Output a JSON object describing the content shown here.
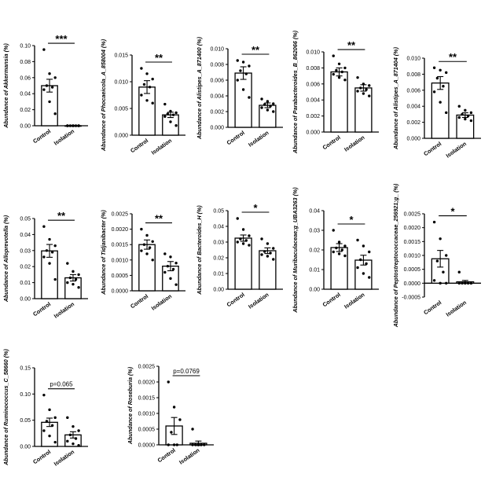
{
  "figure": {
    "background": "#ffffff",
    "bar_fill": "#ffffff",
    "ink": "#000000"
  },
  "chart_data": [
    {
      "type": "bar",
      "ylabel": "Abundance of  Akkermansia (%)",
      "categories": [
        "Control",
        "Isolation"
      ],
      "ylim": [
        0,
        0.1
      ],
      "yticks": [
        "0.00",
        "0.02",
        "0.04",
        "0.06",
        "0.08",
        "0.10"
      ],
      "bars": [
        0.05,
        0.0
      ],
      "errors": [
        0.008,
        0.0005
      ],
      "points": [
        [
          0.095,
          0.065,
          0.06,
          0.05,
          0.048,
          0.045,
          0.03,
          0.015
        ],
        [
          0.0,
          0.0,
          0.0,
          0.0,
          0.0,
          0.0,
          0.0,
          0.0
        ]
      ],
      "sig": "***"
    },
    {
      "type": "bar",
      "ylabel": "Abundance of Phocaeicola_A_858004 (%)",
      "categories": [
        "Control",
        "Isolation"
      ],
      "ylim": [
        0,
        0.015
      ],
      "yticks": [
        "0.000",
        "0.005",
        "0.010",
        "0.015"
      ],
      "bars": [
        0.009,
        0.0038
      ],
      "errors": [
        0.0012,
        0.0005
      ],
      "points": [
        [
          0.0125,
          0.0115,
          0.0105,
          0.0095,
          0.009,
          0.0075,
          0.0065,
          0.006
        ],
        [
          0.0058,
          0.0045,
          0.0042,
          0.004,
          0.0038,
          0.0035,
          0.0025,
          0.0018
        ]
      ],
      "sig": "**"
    },
    {
      "type": "bar",
      "ylabel": "Abundance of Alistipes_A_871400 (%)",
      "categories": [
        "Control",
        "Isolation"
      ],
      "ylim": [
        0,
        0.01
      ],
      "yticks": [
        "0.000",
        "0.002",
        "0.004",
        "0.006",
        "0.008",
        "0.010"
      ],
      "bars": [
        0.0069,
        0.0028
      ],
      "errors": [
        0.0008,
        0.0003
      ],
      "points": [
        [
          0.0085,
          0.0083,
          0.0078,
          0.0072,
          0.0068,
          0.006,
          0.0048,
          0.0038
        ],
        [
          0.0036,
          0.0033,
          0.003,
          0.0029,
          0.0027,
          0.0025,
          0.0022,
          0.002
        ]
      ],
      "sig": "**"
    },
    {
      "type": "bar",
      "ylabel": "Abundance of Parabacteroides_B_862066 (%)",
      "categories": [
        "Control",
        "Isolation"
      ],
      "ylim": [
        0,
        0.01
      ],
      "yticks": [
        "0.000",
        "0.002",
        "0.004",
        "0.006",
        "0.008",
        "0.010"
      ],
      "bars": [
        0.0075,
        0.0055
      ],
      "errors": [
        0.0005,
        0.0004
      ],
      "points": [
        [
          0.0095,
          0.0085,
          0.008,
          0.0077,
          0.0075,
          0.0072,
          0.0068,
          0.0065
        ],
        [
          0.0068,
          0.006,
          0.0058,
          0.0055,
          0.0053,
          0.0051,
          0.0048,
          0.0045
        ]
      ],
      "sig": "**"
    },
    {
      "type": "bar",
      "ylabel": "Abundance of Alistipes_A_871404 (%)",
      "categories": [
        "Control",
        "Isolation"
      ],
      "ylim": [
        0,
        0.01
      ],
      "yticks": [
        "0.000",
        "0.002",
        "0.004",
        "0.006",
        "0.008",
        "0.010"
      ],
      "bars": [
        0.0069,
        0.0029
      ],
      "errors": [
        0.0008,
        0.0003
      ],
      "points": [
        [
          0.0088,
          0.0085,
          0.0082,
          0.0075,
          0.0065,
          0.0058,
          0.0045,
          0.0032
        ],
        [
          0.004,
          0.0035,
          0.0032,
          0.003,
          0.0028,
          0.0026,
          0.0024,
          0.0022
        ]
      ],
      "sig": "**"
    },
    {
      "type": "bar",
      "ylabel": "Abundance of Alloprevotella (%)",
      "categories": [
        "Control",
        "Isolation"
      ],
      "ylim": [
        0,
        0.05
      ],
      "yticks": [
        "0.00",
        "0.01",
        "0.02",
        "0.03",
        "0.04",
        "0.05"
      ],
      "bars": [
        0.0298,
        0.013
      ],
      "errors": [
        0.004,
        0.002
      ],
      "points": [
        [
          0.045,
          0.037,
          0.033,
          0.03,
          0.029,
          0.026,
          0.022,
          0.012
        ],
        [
          0.022,
          0.017,
          0.015,
          0.013,
          0.012,
          0.01,
          0.009,
          0.007
        ]
      ],
      "sig": "**"
    },
    {
      "type": "bar",
      "ylabel": "Abundance of Tidjanibacter (%)",
      "categories": [
        "Control",
        "Isolation"
      ],
      "ylim": [
        0,
        0.0025
      ],
      "yticks": [
        "0.0000",
        "0.0005",
        "0.0010",
        "0.0015",
        "0.0020",
        "0.0025"
      ],
      "bars": [
        0.0015,
        0.0008
      ],
      "errors": [
        0.00015,
        0.00015
      ],
      "points": [
        [
          0.002,
          0.0018,
          0.0016,
          0.0015,
          0.0014,
          0.0013,
          0.0012,
          0.001
        ],
        [
          0.0012,
          0.0011,
          0.0009,
          0.0008,
          0.0007,
          0.0006,
          0.0004,
          0.0002
        ]
      ],
      "sig": "**"
    },
    {
      "type": "bar",
      "ylabel": "Abundance of Bacteroides_H (%)",
      "categories": [
        "Control",
        "Isolation"
      ],
      "ylim": [
        0,
        0.05
      ],
      "yticks": [
        "0.00",
        "0.01",
        "0.02",
        "0.03",
        "0.04",
        "0.05"
      ],
      "bars": [
        0.0325,
        0.0245
      ],
      "errors": [
        0.002,
        0.0018
      ],
      "points": [
        [
          0.045,
          0.038,
          0.034,
          0.032,
          0.031,
          0.03,
          0.029,
          0.028
        ],
        [
          0.032,
          0.029,
          0.026,
          0.024,
          0.023,
          0.022,
          0.021,
          0.019
        ]
      ],
      "sig": "*"
    },
    {
      "type": "bar",
      "ylabel": "Abundance of Muribaculaceae;g_UBA3263 (%)",
      "categories": [
        "Control",
        "Isolation"
      ],
      "ylim": [
        0,
        0.04
      ],
      "yticks": [
        "0.00",
        "0.01",
        "0.02",
        "0.03",
        "0.04"
      ],
      "bars": [
        0.0212,
        0.0148
      ],
      "errors": [
        0.002,
        0.0025
      ],
      "points": [
        [
          0.03,
          0.024,
          0.022,
          0.021,
          0.02,
          0.019,
          0.018,
          0.017
        ],
        [
          0.025,
          0.022,
          0.019,
          0.015,
          0.013,
          0.011,
          0.008,
          0.006
        ]
      ],
      "sig": "*"
    },
    {
      "type": "bar",
      "ylabel": "Abundance of Peptostreptococcaceae_256921;g_ (%)",
      "categories": [
        "Control",
        "Isolation"
      ],
      "ylim": [
        -0.0005,
        0.0025
      ],
      "yticks": [
        "-0.0005",
        "0.0000",
        "0.0005",
        "0.0010",
        "0.0015",
        "0.0020",
        "0.0025"
      ],
      "bars": [
        0.00088,
        5e-05
      ],
      "errors": [
        0.0003,
        5e-05
      ],
      "points": [
        [
          0.0022,
          0.0016,
          0.001,
          0.0008,
          0.0004,
          0.0001,
          0.0,
          0.0
        ],
        [
          0.0004,
          0.0,
          0.0,
          0.0,
          0.0,
          0.0,
          0.0,
          0.0
        ]
      ],
      "sig": "*"
    },
    {
      "type": "bar",
      "ylabel": "Abundance of Ruminococcus_C_58660 (%)",
      "categories": [
        "Control",
        "Isolation"
      ],
      "ylim": [
        0,
        0.15
      ],
      "yticks": [
        "0.00",
        "0.05",
        "0.10",
        "0.15"
      ],
      "bars": [
        0.046,
        0.022
      ],
      "errors": [
        0.008,
        0.006
      ],
      "points": [
        [
          0.098,
          0.07,
          0.055,
          0.048,
          0.04,
          0.03,
          0.02,
          0.008
        ],
        [
          0.055,
          0.038,
          0.03,
          0.022,
          0.015,
          0.01,
          0.005,
          0.002
        ]
      ],
      "sig": "p=0.065"
    },
    {
      "type": "bar",
      "ylabel": "Abundance of Roseburia (%)",
      "categories": [
        "Control",
        "Isolation"
      ],
      "ylim": [
        0,
        0.0025
      ],
      "yticks": [
        "0.0000",
        "0.0005",
        "0.0010",
        "0.0015",
        "0.0020",
        "0.0025"
      ],
      "bars": [
        0.0006,
        5e-05
      ],
      "errors": [
        0.00027,
        7e-05
      ],
      "points": [
        [
          0.002,
          0.0012,
          0.0008,
          0.0004,
          0.0,
          0.0,
          0.0
        ],
        [
          0.0005,
          0.0,
          0.0,
          0.0,
          0.0,
          0.0,
          0.0
        ]
      ],
      "sig": "p=0.0769"
    }
  ]
}
